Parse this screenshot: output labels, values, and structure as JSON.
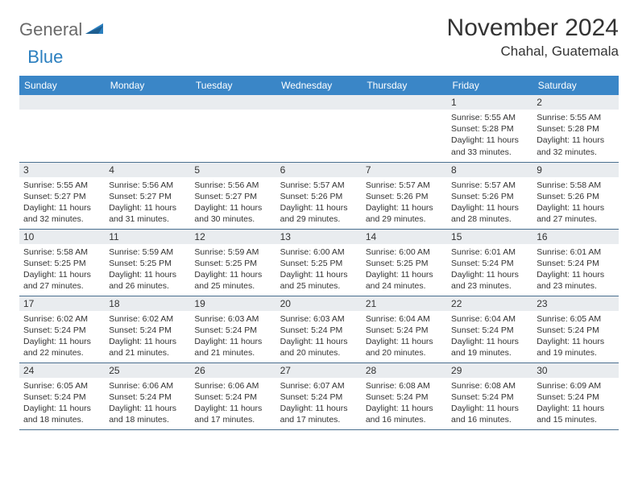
{
  "logo": {
    "general": "General",
    "blue": "Blue"
  },
  "title": "November 2024",
  "location": "Chahal, Guatemala",
  "colors": {
    "header_bg": "#3a86c7",
    "header_text": "#ffffff",
    "daynum_bg": "#e9ecef",
    "border": "#4a6f8f",
    "text": "#333333",
    "logo_blue": "#2b7fbf"
  },
  "weekdays": [
    "Sunday",
    "Monday",
    "Tuesday",
    "Wednesday",
    "Thursday",
    "Friday",
    "Saturday"
  ],
  "labels": {
    "sunrise": "Sunrise: ",
    "sunset": "Sunset: ",
    "daylight": "Daylight: "
  },
  "weeks": [
    [
      null,
      null,
      null,
      null,
      null,
      {
        "n": "1",
        "sr": "5:55 AM",
        "ss": "5:28 PM",
        "dl": "11 hours and 33 minutes."
      },
      {
        "n": "2",
        "sr": "5:55 AM",
        "ss": "5:28 PM",
        "dl": "11 hours and 32 minutes."
      }
    ],
    [
      {
        "n": "3",
        "sr": "5:55 AM",
        "ss": "5:27 PM",
        "dl": "11 hours and 32 minutes."
      },
      {
        "n": "4",
        "sr": "5:56 AM",
        "ss": "5:27 PM",
        "dl": "11 hours and 31 minutes."
      },
      {
        "n": "5",
        "sr": "5:56 AM",
        "ss": "5:27 PM",
        "dl": "11 hours and 30 minutes."
      },
      {
        "n": "6",
        "sr": "5:57 AM",
        "ss": "5:26 PM",
        "dl": "11 hours and 29 minutes."
      },
      {
        "n": "7",
        "sr": "5:57 AM",
        "ss": "5:26 PM",
        "dl": "11 hours and 29 minutes."
      },
      {
        "n": "8",
        "sr": "5:57 AM",
        "ss": "5:26 PM",
        "dl": "11 hours and 28 minutes."
      },
      {
        "n": "9",
        "sr": "5:58 AM",
        "ss": "5:26 PM",
        "dl": "11 hours and 27 minutes."
      }
    ],
    [
      {
        "n": "10",
        "sr": "5:58 AM",
        "ss": "5:25 PM",
        "dl": "11 hours and 27 minutes."
      },
      {
        "n": "11",
        "sr": "5:59 AM",
        "ss": "5:25 PM",
        "dl": "11 hours and 26 minutes."
      },
      {
        "n": "12",
        "sr": "5:59 AM",
        "ss": "5:25 PM",
        "dl": "11 hours and 25 minutes."
      },
      {
        "n": "13",
        "sr": "6:00 AM",
        "ss": "5:25 PM",
        "dl": "11 hours and 25 minutes."
      },
      {
        "n": "14",
        "sr": "6:00 AM",
        "ss": "5:25 PM",
        "dl": "11 hours and 24 minutes."
      },
      {
        "n": "15",
        "sr": "6:01 AM",
        "ss": "5:24 PM",
        "dl": "11 hours and 23 minutes."
      },
      {
        "n": "16",
        "sr": "6:01 AM",
        "ss": "5:24 PM",
        "dl": "11 hours and 23 minutes."
      }
    ],
    [
      {
        "n": "17",
        "sr": "6:02 AM",
        "ss": "5:24 PM",
        "dl": "11 hours and 22 minutes."
      },
      {
        "n": "18",
        "sr": "6:02 AM",
        "ss": "5:24 PM",
        "dl": "11 hours and 21 minutes."
      },
      {
        "n": "19",
        "sr": "6:03 AM",
        "ss": "5:24 PM",
        "dl": "11 hours and 21 minutes."
      },
      {
        "n": "20",
        "sr": "6:03 AM",
        "ss": "5:24 PM",
        "dl": "11 hours and 20 minutes."
      },
      {
        "n": "21",
        "sr": "6:04 AM",
        "ss": "5:24 PM",
        "dl": "11 hours and 20 minutes."
      },
      {
        "n": "22",
        "sr": "6:04 AM",
        "ss": "5:24 PM",
        "dl": "11 hours and 19 minutes."
      },
      {
        "n": "23",
        "sr": "6:05 AM",
        "ss": "5:24 PM",
        "dl": "11 hours and 19 minutes."
      }
    ],
    [
      {
        "n": "24",
        "sr": "6:05 AM",
        "ss": "5:24 PM",
        "dl": "11 hours and 18 minutes."
      },
      {
        "n": "25",
        "sr": "6:06 AM",
        "ss": "5:24 PM",
        "dl": "11 hours and 18 minutes."
      },
      {
        "n": "26",
        "sr": "6:06 AM",
        "ss": "5:24 PM",
        "dl": "11 hours and 17 minutes."
      },
      {
        "n": "27",
        "sr": "6:07 AM",
        "ss": "5:24 PM",
        "dl": "11 hours and 17 minutes."
      },
      {
        "n": "28",
        "sr": "6:08 AM",
        "ss": "5:24 PM",
        "dl": "11 hours and 16 minutes."
      },
      {
        "n": "29",
        "sr": "6:08 AM",
        "ss": "5:24 PM",
        "dl": "11 hours and 16 minutes."
      },
      {
        "n": "30",
        "sr": "6:09 AM",
        "ss": "5:24 PM",
        "dl": "11 hours and 15 minutes."
      }
    ]
  ]
}
